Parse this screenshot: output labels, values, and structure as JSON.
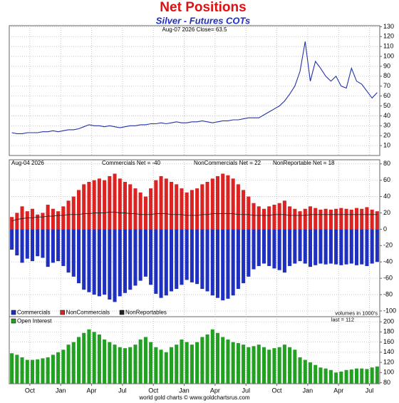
{
  "chart_data": [
    {
      "type": "line",
      "title": "Net Positions",
      "subtitle": "Silver - Futures COTs",
      "annotation": "Aug-07  2026   Close= 63.5",
      "xlim": [
        0,
        36
      ],
      "ylim": [
        0,
        131
      ],
      "yticks": [
        10,
        20,
        30,
        40,
        50,
        60,
        70,
        80,
        90,
        100,
        110,
        120,
        130
      ],
      "grid": true,
      "x": [
        0.25,
        0.75,
        1.25,
        1.75,
        2.25,
        2.75,
        3.25,
        3.75,
        4.25,
        4.75,
        5.25,
        5.75,
        6.25,
        6.75,
        7.25,
        7.75,
        8.25,
        8.75,
        9.25,
        9.75,
        10.25,
        10.75,
        11.25,
        11.75,
        12.25,
        12.75,
        13.25,
        13.75,
        14.25,
        14.75,
        15.25,
        15.75,
        16.25,
        16.75,
        17.25,
        17.75,
        18.25,
        18.75,
        19.25,
        19.75,
        20.25,
        20.75,
        21.25,
        21.75,
        22.25,
        22.75,
        23.25,
        23.75,
        24.25,
        24.75,
        25.25,
        25.75,
        26.25,
        26.75,
        27.25,
        27.75,
        28.25,
        28.75,
        29.25,
        29.75,
        30.25,
        30.75,
        31.25,
        31.75,
        32.25,
        32.75,
        33.25,
        33.75,
        34.25,
        34.75,
        35.25,
        35.75
      ],
      "series": [
        {
          "name": "Close",
          "color": "#2233aa",
          "values": [
            23,
            22,
            22,
            23,
            23,
            23,
            24,
            24,
            25,
            24,
            25,
            26,
            26,
            27,
            29,
            31,
            30,
            30,
            29,
            30,
            29,
            28,
            29,
            30,
            30,
            31,
            31,
            32,
            32,
            33,
            32,
            33,
            34,
            33,
            33,
            34,
            34,
            35,
            34,
            33,
            34,
            35,
            35,
            36,
            36,
            37,
            38,
            38,
            38,
            41,
            44,
            47,
            50,
            55,
            62,
            70,
            85,
            115,
            75,
            95,
            88,
            80,
            75,
            80,
            70,
            68,
            88,
            75,
            72,
            65,
            58,
            63.5
          ]
        }
      ]
    },
    {
      "type": "bar",
      "annotations": [
        "Aug-04  2026",
        "Commercials Net = -40",
        "NonCommercials Net = 22",
        "NonReportable Net = 18"
      ],
      "note": "volumes in 1000's",
      "xlim": [
        0,
        36
      ],
      "ylim": [
        -107,
        85
      ],
      "yticks": [
        -100,
        -80,
        -60,
        -40,
        -20,
        0,
        20,
        40,
        60,
        80
      ],
      "grid": true,
      "x": [
        0.25,
        0.75,
        1.25,
        1.75,
        2.25,
        2.75,
        3.25,
        3.75,
        4.25,
        4.75,
        5.25,
        5.75,
        6.25,
        6.75,
        7.25,
        7.75,
        8.25,
        8.75,
        9.25,
        9.75,
        10.25,
        10.75,
        11.25,
        11.75,
        12.25,
        12.75,
        13.25,
        13.75,
        14.25,
        14.75,
        15.25,
        15.75,
        16.25,
        16.75,
        17.25,
        17.75,
        18.25,
        18.75,
        19.25,
        19.75,
        20.25,
        20.75,
        21.25,
        21.75,
        22.25,
        22.75,
        23.25,
        23.75,
        24.25,
        24.75,
        25.25,
        25.75,
        26.25,
        26.75,
        27.25,
        27.75,
        28.25,
        28.75,
        29.25,
        29.75,
        30.25,
        30.75,
        31.25,
        31.75,
        32.25,
        32.75,
        33.25,
        33.75,
        34.25,
        34.75,
        35.25,
        35.75
      ],
      "series": [
        {
          "name": "Commercials",
          "color": "#1f2fbf",
          "style": "bar",
          "values": [
            -25,
            -32,
            -41,
            -36,
            -39,
            -33,
            -35,
            -46,
            -41,
            -39,
            -45,
            -53,
            -58,
            -66,
            -74,
            -77,
            -80,
            -82,
            -80,
            -86,
            -89,
            -82,
            -78,
            -74,
            -69,
            -63,
            -58,
            -68,
            -79,
            -84,
            -81,
            -76,
            -73,
            -68,
            -62,
            -65,
            -67,
            -73,
            -76,
            -81,
            -84,
            -87,
            -85,
            -81,
            -73,
            -66,
            -58,
            -49,
            -45,
            -42,
            -45,
            -48,
            -50,
            -53,
            -45,
            -42,
            -39,
            -42,
            -46,
            -44,
            -42,
            -43,
            -42,
            -43,
            -44,
            -43,
            -42,
            -44,
            -43,
            -45,
            -42,
            -40
          ]
        },
        {
          "name": "NonCommercials",
          "color": "#dd2222",
          "style": "bar",
          "values": [
            15,
            20,
            28,
            22,
            25,
            18,
            20,
            30,
            25,
            22,
            28,
            35,
            40,
            48,
            55,
            58,
            60,
            62,
            60,
            65,
            68,
            62,
            58,
            55,
            50,
            45,
            40,
            50,
            60,
            65,
            62,
            58,
            55,
            50,
            45,
            48,
            50,
            55,
            58,
            62,
            65,
            68,
            66,
            62,
            55,
            48,
            40,
            32,
            28,
            25,
            28,
            30,
            32,
            35,
            28,
            25,
            22,
            25,
            28,
            26,
            24,
            25,
            24,
            25,
            26,
            25,
            24,
            26,
            25,
            27,
            24,
            22
          ]
        },
        {
          "name": "NonReportables",
          "color": "#222222",
          "style": "line",
          "values": [
            10,
            12,
            13,
            14,
            14,
            15,
            15,
            16,
            16,
            17,
            17,
            18,
            18,
            18,
            19,
            19,
            20,
            20,
            20,
            21,
            21,
            20,
            20,
            19,
            19,
            18,
            18,
            18,
            19,
            19,
            19,
            18,
            18,
            18,
            17,
            17,
            17,
            18,
            18,
            19,
            19,
            19,
            19,
            19,
            18,
            18,
            18,
            17,
            17,
            17,
            17,
            18,
            18,
            18,
            17,
            17,
            17,
            17,
            18,
            18,
            18,
            18,
            18,
            18,
            18,
            18,
            18,
            18,
            18,
            18,
            18,
            18
          ]
        }
      ]
    },
    {
      "type": "bar",
      "footer": "world gold charts © www.goldchartsrus.com",
      "note": "last = 112",
      "xlim": [
        0,
        36
      ],
      "ylim": [
        78,
        210
      ],
      "yticks": [
        80,
        100,
        120,
        140,
        160,
        180,
        200
      ],
      "grid": true,
      "xticks": [
        {
          "value": 2,
          "label": "Oct"
        },
        {
          "value": 5,
          "label": "Jan"
        },
        {
          "value": 8,
          "label": "Apr"
        },
        {
          "value": 11,
          "label": "Jul"
        },
        {
          "value": 14,
          "label": "Oct"
        },
        {
          "value": 17,
          "label": "Jan"
        },
        {
          "value": 20,
          "label": "Apr"
        },
        {
          "value": 23,
          "label": "Jul"
        },
        {
          "value": 26,
          "label": "Oct"
        },
        {
          "value": 29,
          "label": "Jan"
        },
        {
          "value": 32,
          "label": "Apr"
        },
        {
          "value": 35,
          "label": "Jul"
        }
      ],
      "x": [
        0.25,
        0.75,
        1.25,
        1.75,
        2.25,
        2.75,
        3.25,
        3.75,
        4.25,
        4.75,
        5.25,
        5.75,
        6.25,
        6.75,
        7.25,
        7.75,
        8.25,
        8.75,
        9.25,
        9.75,
        10.25,
        10.75,
        11.25,
        11.75,
        12.25,
        12.75,
        13.25,
        13.75,
        14.25,
        14.75,
        15.25,
        15.75,
        16.25,
        16.75,
        17.25,
        17.75,
        18.25,
        18.75,
        19.25,
        19.75,
        20.25,
        20.75,
        21.25,
        21.75,
        22.25,
        22.75,
        23.25,
        23.75,
        24.25,
        24.75,
        25.25,
        25.75,
        26.25,
        26.75,
        27.25,
        27.75,
        28.25,
        28.75,
        29.25,
        29.75,
        30.25,
        30.75,
        31.25,
        31.75,
        32.25,
        32.75,
        33.25,
        33.75,
        34.25,
        34.75,
        35.25,
        35.75
      ],
      "series": [
        {
          "name": "Open Interest",
          "color": "#22a022",
          "style": "bar",
          "values": [
            138,
            135,
            130,
            125,
            125,
            126,
            128,
            130,
            135,
            140,
            145,
            155,
            160,
            170,
            178,
            185,
            180,
            175,
            165,
            160,
            155,
            150,
            148,
            150,
            155,
            165,
            170,
            160,
            150,
            145,
            140,
            150,
            155,
            165,
            160,
            155,
            160,
            170,
            175,
            185,
            178,
            170,
            165,
            160,
            158,
            155,
            150,
            152,
            155,
            150,
            145,
            148,
            150,
            155,
            150,
            145,
            130,
            125,
            120,
            115,
            110,
            108,
            105,
            100,
            102,
            105,
            106,
            108,
            108,
            107,
            110,
            112
          ]
        }
      ]
    }
  ]
}
